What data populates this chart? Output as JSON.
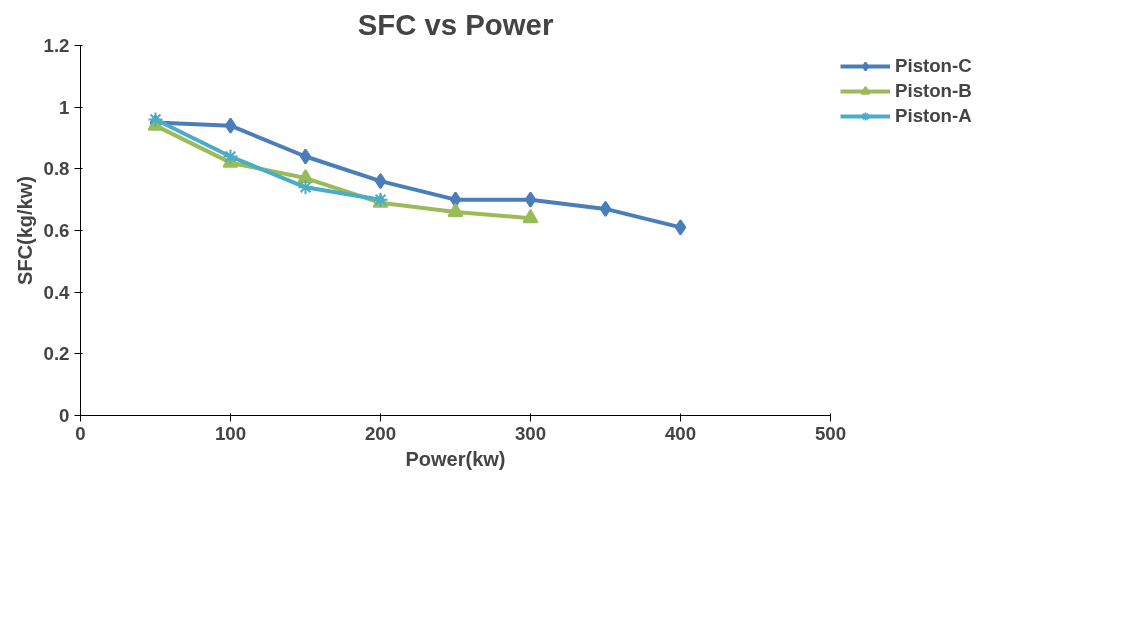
{
  "chart_data": {
    "type": "line",
    "title": "SFC vs Power",
    "xlabel": "Power(kw)",
    "ylabel": "SFC(kg/kw)",
    "xlim": [
      0,
      500
    ],
    "xticks": [
      0,
      100,
      200,
      300,
      400,
      500
    ],
    "ylim": [
      0,
      1.2
    ],
    "yticks": [
      0,
      0.2,
      0.4,
      0.6,
      0.8,
      1,
      1.2
    ],
    "grid": false,
    "legend": "right",
    "line_style": "solid",
    "series": [
      {
        "name": "Piston-C",
        "color": "#4a7ebb",
        "marker": "diamond",
        "x": [
          50,
          100,
          150,
          200,
          250,
          300,
          350,
          400
        ],
        "values": [
          0.95,
          0.94,
          0.84,
          0.76,
          0.7,
          0.7,
          0.67,
          0.61
        ]
      },
      {
        "name": "Piston-B",
        "color": "#9bbb59",
        "marker": "triangle",
        "x": [
          50,
          100,
          150,
          200,
          250,
          300
        ],
        "values": [
          0.94,
          0.82,
          0.77,
          0.69,
          0.66,
          0.64
        ]
      },
      {
        "name": "Piston-A",
        "color": "#4bacc6",
        "marker": "cross",
        "x": [
          50,
          100,
          150,
          200
        ],
        "values": [
          0.96,
          0.84,
          0.74,
          0.7
        ]
      }
    ]
  }
}
